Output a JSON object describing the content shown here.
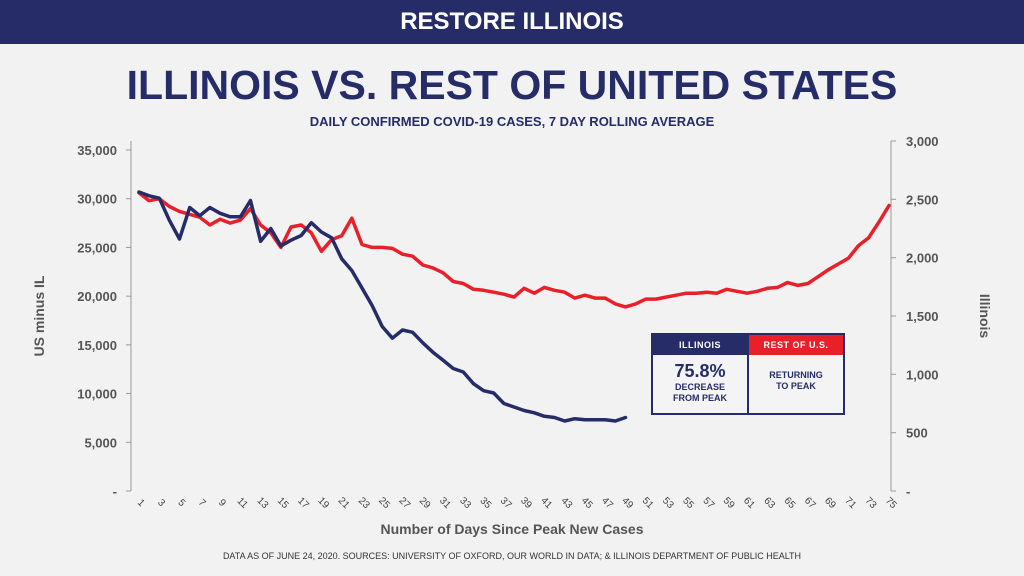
{
  "banner": "RESTORE ILLINOIS",
  "footer": "DATA AS OF JUNE 24, 2020. SOURCES: UNIVERSITY OF OXFORD, OUR WORLD IN DATA; & ILLINOIS DEPARTMENT OF PUBLIC HEALTH",
  "callout": {
    "illinois_header": "ILLINOIS",
    "illinois_value": "75.8%",
    "illinois_line1": "DECREASE",
    "illinois_line2": "FROM PEAK",
    "us_header": "REST OF U.S.",
    "us_line1": "RETURNING",
    "us_line2": "TO PEAK"
  },
  "colors": {
    "navy": "#262c67",
    "red": "#e8202a"
  },
  "chart_data": {
    "type": "line",
    "title": "ILLINOIS VS. REST OF UNITED STATES",
    "subtitle": "DAILY CONFIRMED COVID-19 CASES, 7 DAY ROLLING AVERAGE",
    "xlabel": "Number of Days Since Peak New Cases",
    "ylabel": "US minus IL",
    "y2label": "Illinois",
    "xlim": [
      1,
      75
    ],
    "ylim": [
      0,
      35000
    ],
    "y2lim": [
      0,
      3000
    ],
    "xticks": [
      1,
      3,
      5,
      7,
      9,
      11,
      13,
      15,
      17,
      19,
      21,
      23,
      25,
      27,
      29,
      31,
      33,
      35,
      37,
      39,
      41,
      43,
      45,
      47,
      49,
      51,
      53,
      55,
      57,
      59,
      61,
      63,
      65,
      67,
      69,
      71,
      73,
      75
    ],
    "yticks": [
      "-",
      "5,000",
      "10,000",
      "15,000",
      "20,000",
      "25,000",
      "30,000",
      "35,000"
    ],
    "y2ticks": [
      "-",
      "500",
      "1,000",
      "1,500",
      "2,000",
      "2,500",
      "3,000"
    ],
    "grid": false,
    "series": [
      {
        "name": "US minus IL",
        "axis": "left",
        "color": "#e8202a",
        "values": [
          30600,
          29800,
          30000,
          29200,
          28700,
          28400,
          28100,
          27300,
          27900,
          27500,
          27800,
          29000,
          27300,
          26500,
          25000,
          27100,
          27300,
          26500,
          24600,
          25800,
          26200,
          28000,
          25300,
          25000,
          25000,
          24900,
          24300,
          24100,
          23200,
          22900,
          22400,
          21500,
          21300,
          20700,
          20600,
          20400,
          20200,
          19900,
          20800,
          20300,
          20900,
          20600,
          20400,
          19800,
          20100,
          19800,
          19800,
          19200,
          18900,
          19200,
          19700,
          19700,
          19900,
          20100,
          20300,
          20300,
          20400,
          20300,
          20700,
          20500,
          20300,
          20500,
          20800,
          20900,
          21400,
          21100,
          21300,
          22000,
          22700,
          23300,
          23900,
          25200,
          26000,
          27600,
          29300
        ]
      },
      {
        "name": "Illinois",
        "axis": "right",
        "color": "#262c67",
        "values": [
          2563,
          2530,
          2510,
          2320,
          2160,
          2430,
          2360,
          2430,
          2380,
          2350,
          2350,
          2490,
          2140,
          2250,
          2100,
          2150,
          2190,
          2300,
          2220,
          2170,
          1990,
          1890,
          1740,
          1590,
          1410,
          1310,
          1380,
          1360,
          1270,
          1190,
          1120,
          1050,
          1020,
          920,
          860,
          840,
          750,
          720,
          690,
          670,
          640,
          630,
          600,
          620,
          610,
          610,
          610,
          600,
          630
        ]
      }
    ]
  }
}
